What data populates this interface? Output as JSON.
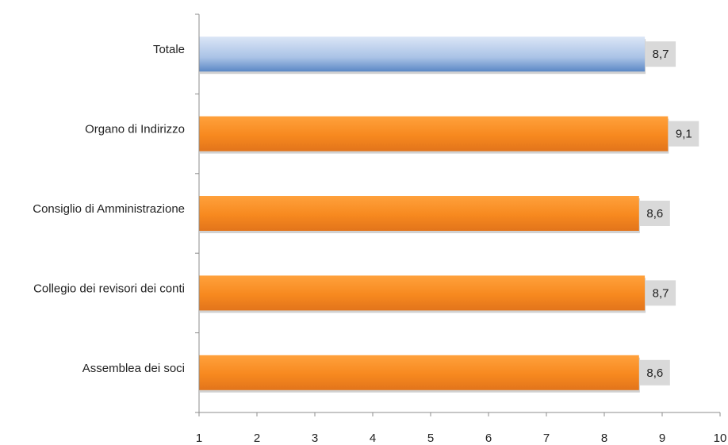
{
  "chart_data": {
    "type": "bar",
    "orientation": "horizontal",
    "categories": [
      "Totale",
      "Organo di Indirizzo",
      "Consiglio di Amministrazione",
      "Collegio dei revisori dei conti",
      "Assemblea dei soci"
    ],
    "values": [
      8.7,
      9.1,
      8.6,
      8.7,
      8.6
    ],
    "value_labels": [
      "8,7",
      "9,1",
      "8,6",
      "8,7",
      "8,6"
    ],
    "xlim": [
      1,
      10
    ],
    "xticks": [
      1,
      2,
      3,
      4,
      5,
      6,
      7,
      8,
      9,
      10
    ],
    "title": "",
    "xlabel": "",
    "ylabel": "",
    "grid": false,
    "legend": "none",
    "colors": {
      "highlight_light": "#dbe6f6",
      "highlight_dark": "#5b87c5",
      "bar_light": "#ffa13c",
      "bar_dark": "#e2741b",
      "label_box": "#d9d9d9",
      "axis": "#8c8c8c"
    },
    "highlight_index": 0
  }
}
